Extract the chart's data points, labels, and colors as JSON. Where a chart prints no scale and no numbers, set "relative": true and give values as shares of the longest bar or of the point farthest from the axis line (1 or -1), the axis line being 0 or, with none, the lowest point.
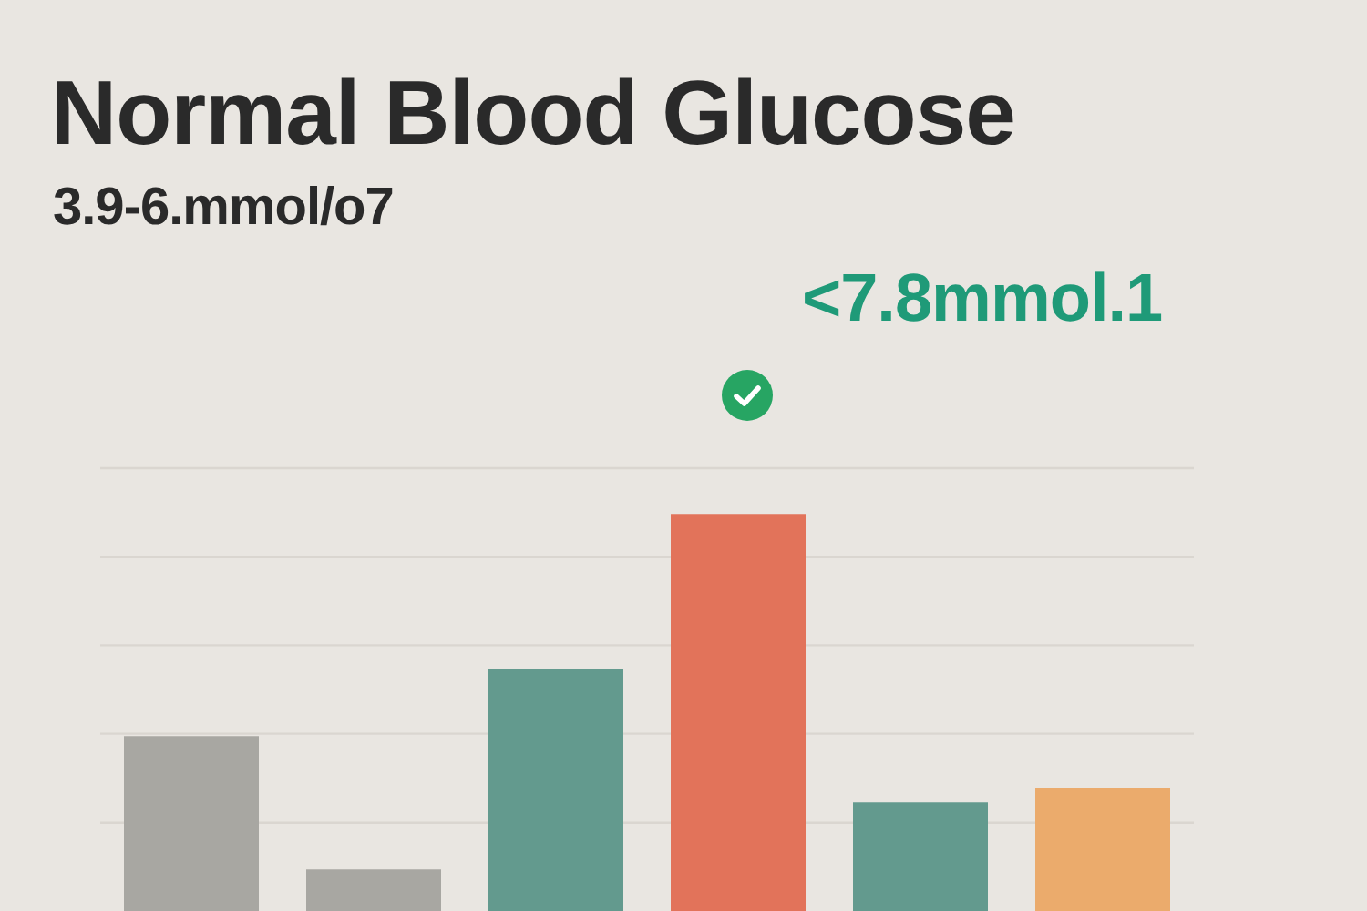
{
  "chart_data": {
    "type": "bar",
    "title": "Normal Blood Glucose",
    "subtitle": "3.9-6.mmol/o7",
    "annotations": [
      "<7.8mmol.1"
    ],
    "categories": [
      null,
      null,
      null,
      null,
      null,
      null
    ],
    "values": [
      0.44,
      0.105,
      0.61,
      1,
      0.275,
      0.31
    ],
    "colors": [
      "#a8a7a2",
      "#a8a7a2",
      "#639a8e",
      "#e2735a",
      "#639a8e",
      "#ebab6c"
    ],
    "relative": true,
    "grid": "y"
  }
}
